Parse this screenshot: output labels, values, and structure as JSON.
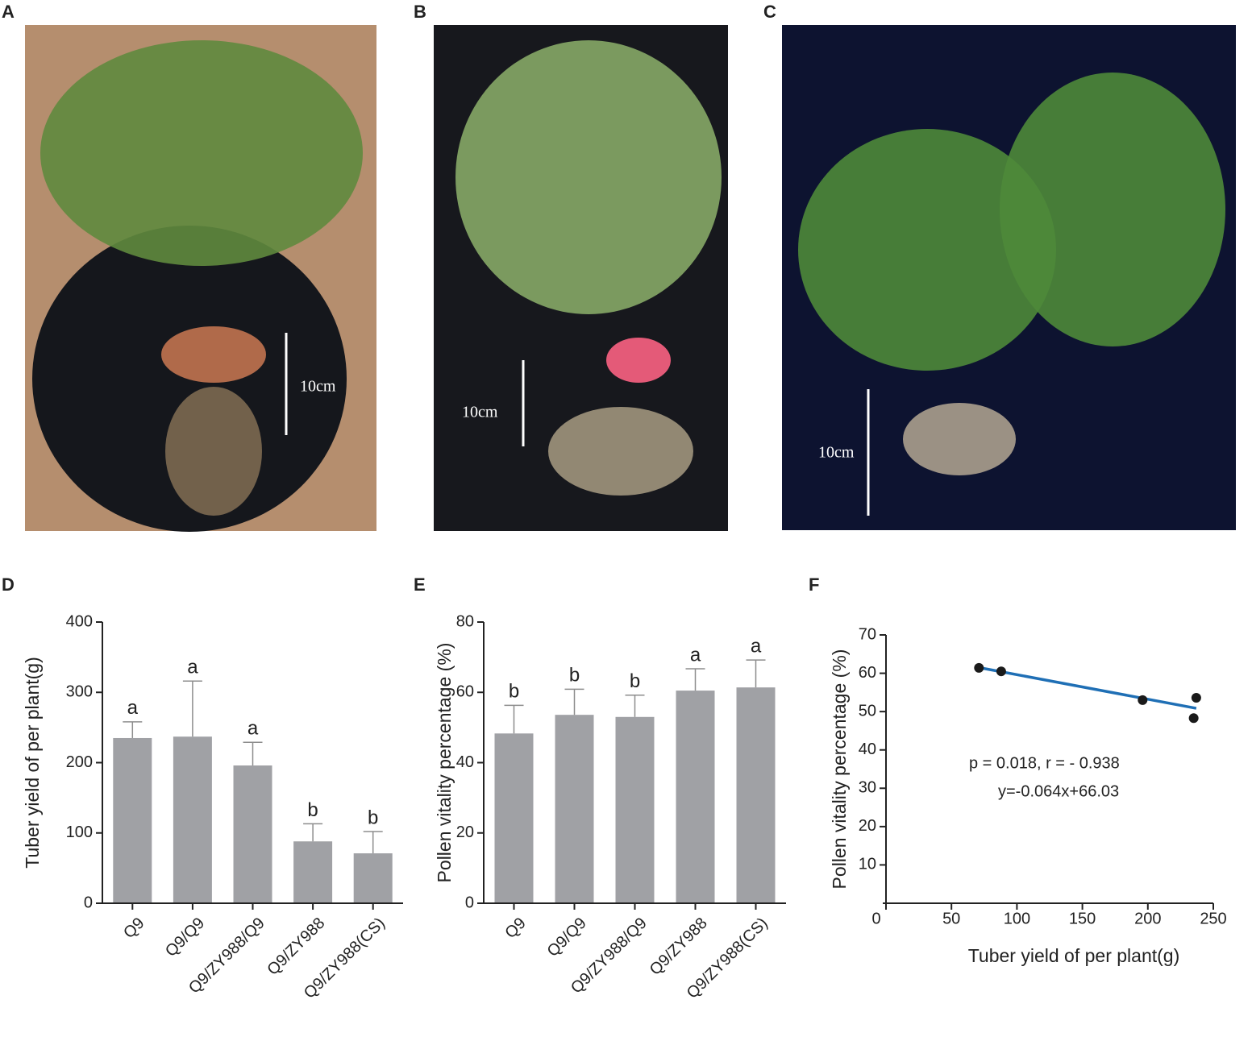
{
  "photos": [
    {
      "panel": "A",
      "scale_label": "10cm"
    },
    {
      "panel": "B",
      "scale_label": "10cm"
    },
    {
      "panel": "C",
      "scale_label": "10cm"
    }
  ],
  "chart_data": [
    {
      "type": "bar",
      "panel": "D",
      "ylabel": "Tuber yield of per plant(g)",
      "categories": [
        "Q9",
        "Q9/Q9",
        "Q9/ZY988/Q9",
        "Q9/ZY988",
        "Q9/ZY988(CS)"
      ],
      "values": [
        235,
        237,
        196,
        88,
        71
      ],
      "errors": [
        23,
        79,
        33,
        25,
        31
      ],
      "significance": [
        "a",
        "a",
        "a",
        "b",
        "b"
      ],
      "color": "#a0a1a5",
      "ylim": [
        0,
        400
      ],
      "yticks": [
        0,
        100,
        200,
        300,
        400
      ]
    },
    {
      "type": "bar",
      "panel": "E",
      "ylabel": "Pollen vitality percentage (%)",
      "categories": [
        "Q9",
        "Q9/Q9",
        "Q9/ZY988/Q9",
        "Q9/ZY988",
        "Q9/ZY988(CS)"
      ],
      "values": [
        48.3,
        53.6,
        53.0,
        60.5,
        61.4
      ],
      "errors": [
        8.0,
        7.3,
        6.2,
        6.2,
        7.8
      ],
      "significance": [
        "b",
        "b",
        "b",
        "a",
        "a"
      ],
      "color": "#a0a1a5",
      "ylim": [
        0,
        80
      ],
      "yticks": [
        0,
        20,
        40,
        60,
        80
      ]
    },
    {
      "type": "scatter",
      "panel": "F",
      "xlabel": "Tuber yield of per plant(g)",
      "ylabel": "Pollen vitality percentage (%)",
      "x": [
        71,
        88,
        196,
        237,
        235
      ],
      "values": [
        61.4,
        60.5,
        53.0,
        53.6,
        48.3
      ],
      "color": "#1a1a1a",
      "trendline": {
        "slope": -0.064,
        "intercept": 66.03,
        "color": "#1f6fb5"
      },
      "annotations": [
        "p = 0.018,  r = - 0.938",
        "y=-0.064x+66.03"
      ],
      "xlim": [
        0,
        250
      ],
      "xticks": [
        0,
        50,
        100,
        150,
        200,
        250
      ],
      "ylim": [
        0,
        70
      ],
      "yticks": [
        10,
        20,
        30,
        40,
        50,
        60,
        70
      ]
    }
  ]
}
